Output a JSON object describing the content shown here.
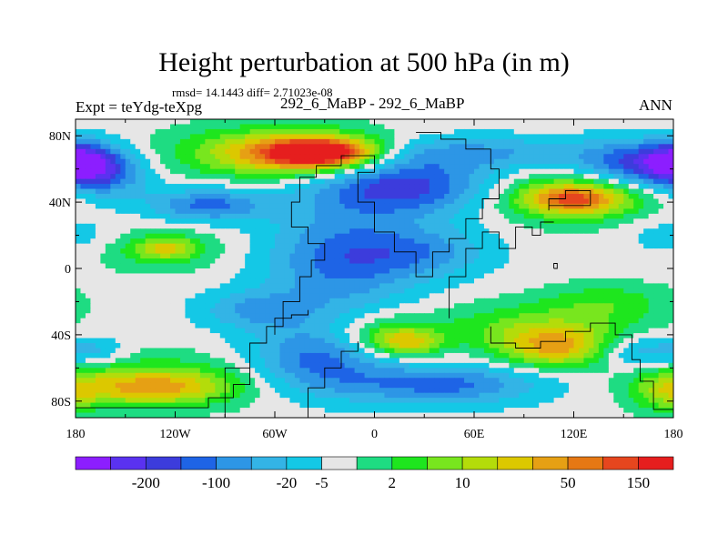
{
  "header": {
    "title": "Height perturbation at 500 hPa (in m)",
    "stats": "rmsd= 14.1443 diff= 2.71023e-08",
    "experiment": "Expt = teYdg-teXpg",
    "case": "292_6_MaBP - 292_6_MaBP",
    "season": "ANN"
  },
  "chart_data": {
    "type": "heatmap",
    "title": "Height perturbation at 500 hPa (in m)",
    "subtitle": "292_6_MaBP - 292_6_MaBP",
    "units": "m",
    "xlim": [
      -180,
      180
    ],
    "ylim": [
      -90,
      90
    ],
    "x_ticks": [
      {
        "value": -180,
        "label": "180"
      },
      {
        "value": -120,
        "label": "120W"
      },
      {
        "value": -60,
        "label": "60W"
      },
      {
        "value": 0,
        "label": "0"
      },
      {
        "value": 60,
        "label": "60E"
      },
      {
        "value": 120,
        "label": "120E"
      },
      {
        "value": 180,
        "label": "180"
      }
    ],
    "y_ticks": [
      {
        "value": 80,
        "label": "80N"
      },
      {
        "value": 40,
        "label": "40N"
      },
      {
        "value": 0,
        "label": "0"
      },
      {
        "value": -40,
        "label": "40S"
      },
      {
        "value": -80,
        "label": "80S"
      }
    ],
    "colorbar": {
      "labels": [
        "-200",
        "-100",
        "-20",
        "-5",
        "2",
        "10",
        "50",
        "150"
      ],
      "colors": [
        "#8c1eff",
        "#5a32f0",
        "#3c3cdc",
        "#1e64e6",
        "#2d96e6",
        "#33b4e6",
        "#14c8e6",
        "#e6e6e6",
        "#1edc82",
        "#1ee61e",
        "#78e61e",
        "#b4dc0a",
        "#dcc800",
        "#e6a014",
        "#e67814",
        "#e6461e",
        "#e61e1e"
      ]
    },
    "blobs": [
      {
        "lon": -180,
        "lat": 20,
        "rx": 30,
        "ry": 12,
        "v": -1
      },
      {
        "lon": -170,
        "lat": -50,
        "rx": 20,
        "ry": 9,
        "v": -1.5
      },
      {
        "lon": -130,
        "lat": 12,
        "rx": 40,
        "ry": 14,
        "v": 1.5
      },
      {
        "lon": -125,
        "lat": 12,
        "rx": 18,
        "ry": 6,
        "v": 2.5
      },
      {
        "lon": -130,
        "lat": -68,
        "rx": 65,
        "ry": 16,
        "v": 2
      },
      {
        "lon": -135,
        "lat": -72,
        "rx": 45,
        "ry": 10,
        "v": 3
      },
      {
        "lon": -160,
        "lat": 55,
        "rx": 25,
        "ry": 14,
        "v": -2
      },
      {
        "lon": -175,
        "lat": 65,
        "rx": 20,
        "ry": 12,
        "v": -3
      },
      {
        "lon": -100,
        "lat": 38,
        "rx": 35,
        "ry": 10,
        "v": -3
      },
      {
        "lon": -60,
        "lat": 70,
        "rx": 65,
        "ry": 16,
        "v": 2.5
      },
      {
        "lon": -40,
        "lat": 69,
        "rx": 50,
        "ry": 12,
        "v": 4
      },
      {
        "lon": -30,
        "lat": 70,
        "rx": 30,
        "ry": 8,
        "v": 5
      },
      {
        "lon": -20,
        "lat": 5,
        "rx": 45,
        "ry": 30,
        "v": -3
      },
      {
        "lon": -35,
        "lat": -55,
        "rx": 40,
        "ry": 20,
        "v": -3
      },
      {
        "lon": -70,
        "lat": -25,
        "rx": 35,
        "ry": 12,
        "v": -2
      },
      {
        "lon": 15,
        "lat": 50,
        "rx": 55,
        "ry": 18,
        "v": -4
      },
      {
        "lon": 50,
        "lat": 70,
        "rx": 90,
        "ry": 10,
        "v": -2
      },
      {
        "lon": 165,
        "lat": 62,
        "rx": 40,
        "ry": 14,
        "v": -4
      },
      {
        "lon": 20,
        "lat": -45,
        "rx": 20,
        "ry": 8,
        "v": 3
      },
      {
        "lon": 5,
        "lat": -40,
        "rx": 30,
        "ry": 12,
        "v": 2
      },
      {
        "lon": 95,
        "lat": -35,
        "rx": 60,
        "ry": 14,
        "v": 2
      },
      {
        "lon": 110,
        "lat": -48,
        "rx": 35,
        "ry": 12,
        "v": 4
      },
      {
        "lon": 140,
        "lat": -20,
        "rx": 40,
        "ry": 12,
        "v": 1.5
      },
      {
        "lon": 155,
        "lat": -50,
        "rx": 25,
        "ry": 10,
        "v": -2
      },
      {
        "lon": 120,
        "lat": 43,
        "rx": 50,
        "ry": 16,
        "v": 2.5
      },
      {
        "lon": 120,
        "lat": 42,
        "rx": 30,
        "ry": 9,
        "v": 4
      },
      {
        "lon": 175,
        "lat": -75,
        "rx": 20,
        "ry": 12,
        "v": 2
      },
      {
        "lon": 40,
        "lat": -70,
        "rx": 60,
        "ry": 12,
        "v": -3
      },
      {
        "lon": 30,
        "lat": 10,
        "rx": 40,
        "ry": 15,
        "v": -2
      }
    ]
  }
}
